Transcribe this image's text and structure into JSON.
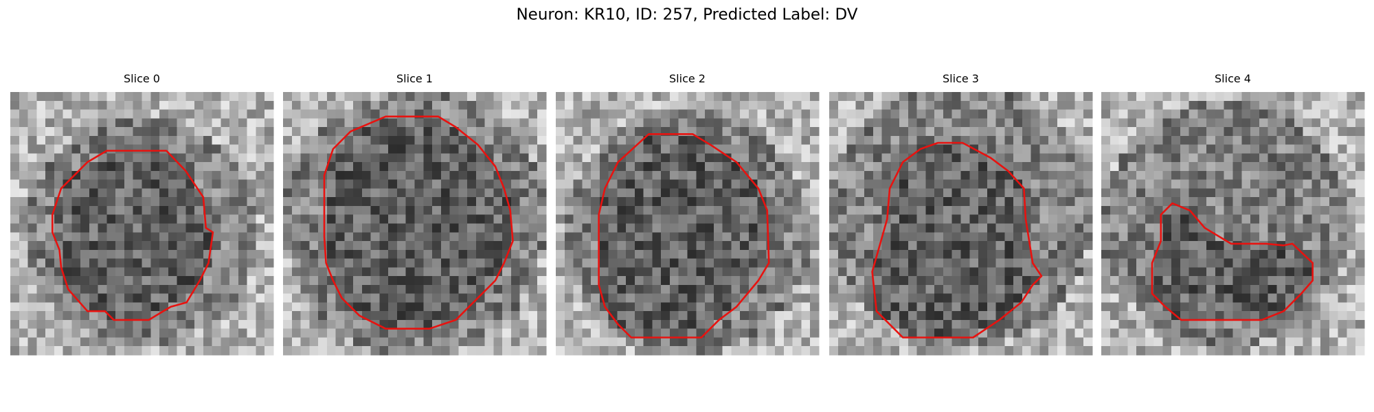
{
  "title": "Neuron: KR10, ID: 257, Predicted Label: DV",
  "panels": [
    {
      "title": "Slice 0"
    },
    {
      "title": "Slice 1"
    },
    {
      "title": "Slice 2"
    },
    {
      "title": "Slice 3"
    },
    {
      "title": "Slice 4"
    }
  ]
}
